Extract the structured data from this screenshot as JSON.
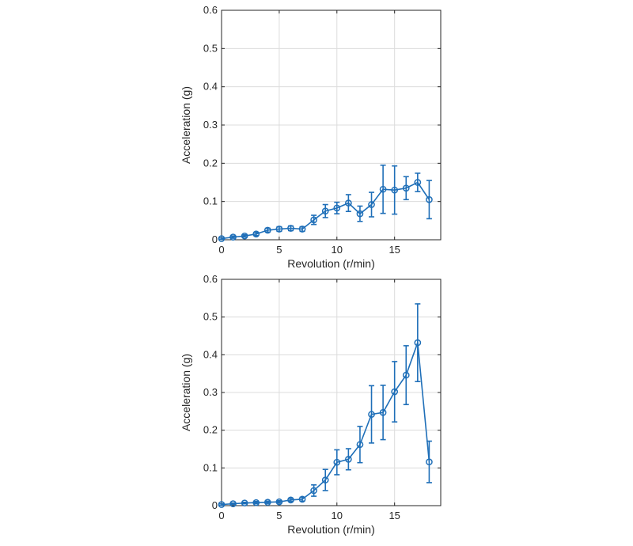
{
  "chart_data": [
    {
      "type": "line",
      "title": "",
      "xlabel": "Revolution (r/min)",
      "ylabel": "Acceleration (g)",
      "xlim": [
        0,
        19
      ],
      "ylim": [
        0,
        0.6
      ],
      "xticks": [
        0,
        5,
        10,
        15
      ],
      "yticks": [
        0,
        0.1,
        0.2,
        0.3,
        0.4,
        0.5,
        0.6
      ],
      "grid": true,
      "color": "#1f6fb8",
      "series": [
        {
          "x": [
            0,
            1,
            2,
            3,
            4,
            5,
            6,
            7,
            8,
            9,
            10,
            11,
            12,
            13,
            14,
            15,
            16,
            17,
            18
          ],
          "y": [
            0.003,
            0.007,
            0.01,
            0.015,
            0.025,
            0.028,
            0.03,
            0.028,
            0.052,
            0.075,
            0.083,
            0.096,
            0.068,
            0.092,
            0.132,
            0.13,
            0.135,
            0.15,
            0.105
          ],
          "err": [
            0.002,
            0.003,
            0.003,
            0.004,
            0.005,
            0.006,
            0.006,
            0.006,
            0.012,
            0.017,
            0.015,
            0.022,
            0.02,
            0.032,
            0.063,
            0.063,
            0.03,
            0.024,
            0.05
          ]
        }
      ]
    },
    {
      "type": "line",
      "title": "",
      "xlabel": "Revolution (r/min)",
      "ylabel": "Acceleration (g)",
      "xlim": [
        0,
        19
      ],
      "ylim": [
        0,
        0.6
      ],
      "xticks": [
        0,
        5,
        10,
        15
      ],
      "yticks": [
        0,
        0.1,
        0.2,
        0.3,
        0.4,
        0.5,
        0.6
      ],
      "grid": true,
      "color": "#1f6fb8",
      "series": [
        {
          "x": [
            0,
            1,
            2,
            3,
            4,
            5,
            6,
            7,
            8,
            9,
            10,
            11,
            12,
            13,
            14,
            15,
            16,
            17,
            18
          ],
          "y": [
            0.003,
            0.005,
            0.007,
            0.008,
            0.009,
            0.01,
            0.015,
            0.017,
            0.04,
            0.068,
            0.115,
            0.123,
            0.162,
            0.242,
            0.247,
            0.302,
            0.346,
            0.432,
            0.116
          ],
          "err": [
            0.002,
            0.002,
            0.002,
            0.003,
            0.003,
            0.003,
            0.004,
            0.005,
            0.015,
            0.028,
            0.033,
            0.028,
            0.048,
            0.076,
            0.072,
            0.08,
            0.078,
            0.103,
            0.055
          ]
        }
      ]
    }
  ]
}
